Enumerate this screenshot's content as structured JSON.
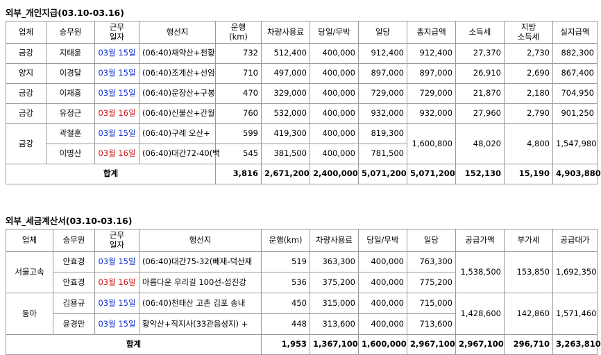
{
  "section1": {
    "title": "외부_개인지급(03.10-03.16)",
    "headers": {
      "company": "업체",
      "driver": "승무원",
      "workday": "근무\n일자",
      "route": "행선지",
      "distance": "운행\n(km)",
      "vehicle_fee": "차량사용료",
      "daytrip": "당일/무박",
      "daily": "일당",
      "total_pay": "총지급액",
      "income_tax": "소득세",
      "local_tax": "지방\n소득세",
      "net_pay": "실지급액"
    },
    "rows": [
      {
        "company": "금강",
        "driver": "지태윤",
        "month": "03월",
        "day": "15일",
        "day_color": "blue",
        "route": "(06:40)재약산+천황",
        "distance": "732",
        "vehicle_fee": "512,400",
        "daytrip": "400,000",
        "daily": "912,400",
        "total_pay": "912,400",
        "income_tax": "27,370",
        "local_tax": "2,730",
        "net_pay": "882,300"
      },
      {
        "company": "양지",
        "driver": "이경달",
        "month": "03월",
        "day": "15일",
        "day_color": "blue",
        "route": "(06:40)조계산+선암",
        "distance": "710",
        "vehicle_fee": "497,000",
        "daytrip": "400,000",
        "daily": "897,000",
        "total_pay": "897,000",
        "income_tax": "26,910",
        "local_tax": "2,690",
        "net_pay": "867,400"
      },
      {
        "company": "금강",
        "driver": "이재흥",
        "month": "03월",
        "day": "15일",
        "day_color": "blue",
        "route": "(06:40)운장산+구봉",
        "distance": "470",
        "vehicle_fee": "329,000",
        "daytrip": "400,000",
        "daily": "729,000",
        "total_pay": "729,000",
        "income_tax": "21,870",
        "local_tax": "2,180",
        "net_pay": "704,950"
      },
      {
        "company": "금강",
        "driver": "유정근",
        "month": "03월",
        "day": "16일",
        "day_color": "red",
        "route": "(06:40)신불산+간월",
        "distance": "760",
        "vehicle_fee": "532,000",
        "daytrip": "400,000",
        "daily": "932,000",
        "total_pay": "932,000",
        "income_tax": "27,960",
        "local_tax": "2,790",
        "net_pay": "901,250"
      }
    ],
    "group": {
      "company": "금강",
      "total_pay": "1,600,800",
      "income_tax": "48,020",
      "local_tax": "4,800",
      "net_pay": "1,547,980",
      "rows": [
        {
          "driver": "곽철훈",
          "month": "03월",
          "day": "15일",
          "day_color": "blue",
          "route": "(06:40)구례 오산+",
          "distance": "599",
          "vehicle_fee": "419,300",
          "daytrip": "400,000",
          "daily": "819,300"
        },
        {
          "driver": "이명산",
          "month": "03월",
          "day": "16일",
          "day_color": "red",
          "route": "(06:40)대간72-40(백",
          "distance": "545",
          "vehicle_fee": "381,500",
          "daytrip": "400,000",
          "daily": "781,500"
        }
      ]
    },
    "total": {
      "label": "합계",
      "distance": "3,816",
      "vehicle_fee": "2,671,200",
      "daytrip": "2,400,000",
      "daily": "5,071,200",
      "total_pay": "5,071,200",
      "income_tax": "152,130",
      "local_tax": "15,190",
      "net_pay": "4,903,880"
    }
  },
  "section2": {
    "title": "외부_세금계산서(03.10-03.16)",
    "headers": {
      "company": "업체",
      "driver": "승무원",
      "workday": "근무\n일자",
      "route": "행선지",
      "distance": "운행(km)",
      "vehicle_fee": "차량사용료",
      "daytrip": "당일/무박",
      "daily": "일당",
      "supply": "공급가액",
      "vat": "부가세",
      "supply_total": "공급대가"
    },
    "groups": [
      {
        "company": "서울고속",
        "supply": "1,538,500",
        "vat": "153,850",
        "supply_total": "1,692,350",
        "rows": [
          {
            "driver": "안효경",
            "month": "03월",
            "day": "15일",
            "day_color": "blue",
            "route": "(06:40)대간75-32(빼재-덕산재",
            "distance": "519",
            "vehicle_fee": "363,300",
            "daytrip": "400,000",
            "daily": "763,300"
          },
          {
            "driver": "안효경",
            "month": "03월",
            "day": "16일",
            "day_color": "red",
            "route": "아름다운 우리길 100선-섬진강",
            "distance": "536",
            "vehicle_fee": "375,200",
            "daytrip": "400,000",
            "daily": "775,200"
          }
        ]
      },
      {
        "company": "동아",
        "supply": "1,428,600",
        "vat": "142,860",
        "supply_total": "1,571,460",
        "rows": [
          {
            "driver": "김용규",
            "month": "03월",
            "day": "15일",
            "day_color": "blue",
            "route": "(06:40)천태산 고촌 김포 송내",
            "distance": "450",
            "vehicle_fee": "315,000",
            "daytrip": "400,000",
            "daily": "715,000"
          },
          {
            "driver": "윤경만",
            "month": "03월",
            "day": "15일",
            "day_color": "blue",
            "route": "황악산+직지사(33관음성지) +",
            "distance": "448",
            "vehicle_fee": "313,600",
            "daytrip": "400,000",
            "daily": "713,600"
          }
        ]
      }
    ],
    "total": {
      "label": "합계",
      "distance": "1,953",
      "vehicle_fee": "1,367,100",
      "daytrip": "1,600,000",
      "daily": "2,967,100",
      "supply": "2,967,100",
      "vat": "296,710",
      "supply_total": "3,263,810"
    }
  },
  "colors": {
    "weekday": "#1030d0",
    "weekend": "#d01010"
  }
}
